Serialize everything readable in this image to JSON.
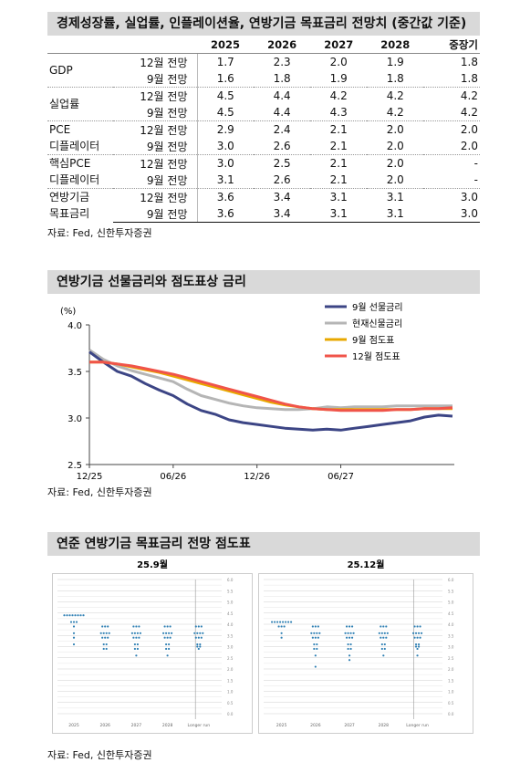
{
  "table_section": {
    "title": "경제성장률, 실업률, 인플레이션율, 연방기금 목표금리 전망치 (중간값 기준)",
    "headers": [
      "",
      "",
      "2025",
      "2026",
      "2027",
      "2028",
      "중장기"
    ],
    "groups": [
      {
        "label": "GDP",
        "rows": [
          {
            "sub": "12월 전망",
            "values": [
              "1.7",
              "2.3",
              "2.0",
              "1.9",
              "1.8"
            ]
          },
          {
            "sub": "9월 전망",
            "values": [
              "1.6",
              "1.8",
              "1.9",
              "1.8",
              "1.8"
            ]
          }
        ]
      },
      {
        "label": "실업률",
        "rows": [
          {
            "sub": "12월 전망",
            "values": [
              "4.5",
              "4.4",
              "4.2",
              "4.2",
              "4.2"
            ]
          },
          {
            "sub": "9월 전망",
            "values": [
              "4.5",
              "4.4",
              "4.3",
              "4.2",
              "4.2"
            ]
          }
        ]
      },
      {
        "label": "PCE\n디플레이터",
        "rows": [
          {
            "sub": "12월 전망",
            "values": [
              "2.9",
              "2.4",
              "2.1",
              "2.0",
              "2.0"
            ]
          },
          {
            "sub": "9월 전망",
            "values": [
              "3.0",
              "2.6",
              "2.1",
              "2.0",
              "2.0"
            ]
          }
        ]
      },
      {
        "label": "핵심PCE\n디플레이터",
        "rows": [
          {
            "sub": "12월 전망",
            "values": [
              "3.0",
              "2.5",
              "2.1",
              "2.0",
              "-"
            ]
          },
          {
            "sub": "9월 전망",
            "values": [
              "3.1",
              "2.6",
              "2.1",
              "2.0",
              "-"
            ]
          }
        ]
      },
      {
        "label": "연방기금\n목표금리",
        "rows": [
          {
            "sub": "12월 전망",
            "values": [
              "3.6",
              "3.4",
              "3.1",
              "3.1",
              "3.0"
            ]
          },
          {
            "sub": "9월 전망",
            "values": [
              "3.6",
              "3.4",
              "3.1",
              "3.1",
              "3.0"
            ]
          }
        ]
      }
    ],
    "source": "자료: Fed, 신한투자증권"
  },
  "line_section": {
    "title": "연방기금 선물금리와 점도표상 금리",
    "source": "자료: Fed, 신한투자증권"
  },
  "dot_section": {
    "title": "연준 연방기금 목표금리 전망 점도표",
    "source": "자료: Fed, 신한투자증권",
    "panels": [
      {
        "title": "25.9월",
        "dots": [
          [
            2.0,
            [
              4.4,
              4.1,
              3.9,
              3.6,
              3.4,
              3.1
            ]
          ],
          [
            6.0,
            [
              3.9,
              3.6,
              3.4,
              3.1,
              2.9
            ]
          ],
          [
            10.0,
            [
              3.9,
              3.6,
              3.4,
              3.1,
              2.9,
              2.6
            ]
          ],
          [
            14.0,
            [
              3.9,
              3.6,
              3.4,
              3.1,
              2.9,
              2.6
            ]
          ],
          [
            18.0,
            [
              3.9,
              3.6,
              3.4,
              3.1,
              3.0,
              2.9
            ]
          ]
        ]
      },
      {
        "title": "25.12월",
        "dots": [
          [
            2.0,
            [
              4.1,
              3.9,
              3.6,
              3.4
            ]
          ],
          [
            6.0,
            [
              3.9,
              3.6,
              3.4,
              3.1,
              2.9,
              2.6,
              2.1
            ]
          ],
          [
            10.0,
            [
              3.9,
              3.6,
              3.4,
              3.1,
              2.9,
              2.6,
              2.4
            ]
          ],
          [
            14.0,
            [
              3.9,
              3.6,
              3.4,
              3.1,
              2.9,
              2.6
            ]
          ],
          [
            18.0,
            [
              3.9,
              3.6,
              3.4,
              3.1,
              3.0,
              2.9,
              2.6
            ]
          ]
        ]
      }
    ]
  },
  "chart_data": {
    "type": "line",
    "ylabel": "(%)",
    "ylim": [
      2.5,
      4.0
    ],
    "yticks": [
      "4.0",
      "3.5",
      "3.0",
      "2.5"
    ],
    "xticks": [
      "12/25",
      "06/26",
      "12/26",
      "06/27"
    ],
    "x_index_range": [
      0,
      26
    ],
    "x_tick_positions": [
      0,
      6,
      12,
      18
    ],
    "legend_position": "top-right",
    "series": [
      {
        "name": "9월 선물금리",
        "color": "#3c4585",
        "values": [
          3.71,
          3.6,
          3.5,
          3.45,
          3.37,
          3.3,
          3.24,
          3.15,
          3.08,
          3.04,
          2.98,
          2.95,
          2.93,
          2.91,
          2.89,
          2.88,
          2.87,
          2.88,
          2.87,
          2.89,
          2.91,
          2.93,
          2.95,
          2.97,
          3.01,
          3.03,
          3.02
        ]
      },
      {
        "name": "현재신물금리",
        "color": "#b5b5b5",
        "values": [
          3.73,
          3.63,
          3.56,
          3.51,
          3.47,
          3.43,
          3.39,
          3.31,
          3.24,
          3.2,
          3.16,
          3.13,
          3.11,
          3.1,
          3.09,
          3.09,
          3.1,
          3.12,
          3.11,
          3.12,
          3.12,
          3.12,
          3.13,
          3.13,
          3.13,
          3.13,
          3.13
        ]
      },
      {
        "name": "9월 점도표",
        "color": "#e8a800",
        "values": [
          3.6,
          3.6,
          3.58,
          3.55,
          3.52,
          3.49,
          3.45,
          3.41,
          3.37,
          3.33,
          3.29,
          3.25,
          3.21,
          3.17,
          3.14,
          3.12,
          3.1,
          3.09,
          3.09,
          3.09,
          3.09,
          3.09,
          3.09,
          3.09,
          3.1,
          3.1,
          3.1
        ]
      },
      {
        "name": "12월 점도표",
        "color": "#f0544a",
        "values": [
          3.6,
          3.6,
          3.58,
          3.56,
          3.53,
          3.5,
          3.47,
          3.43,
          3.39,
          3.35,
          3.31,
          3.27,
          3.23,
          3.19,
          3.15,
          3.12,
          3.1,
          3.09,
          3.08,
          3.08,
          3.08,
          3.08,
          3.09,
          3.09,
          3.1,
          3.1,
          3.11
        ]
      }
    ]
  },
  "colors": {
    "section_bg": "#d9d9d9",
    "dot": "#2e7fb3"
  }
}
